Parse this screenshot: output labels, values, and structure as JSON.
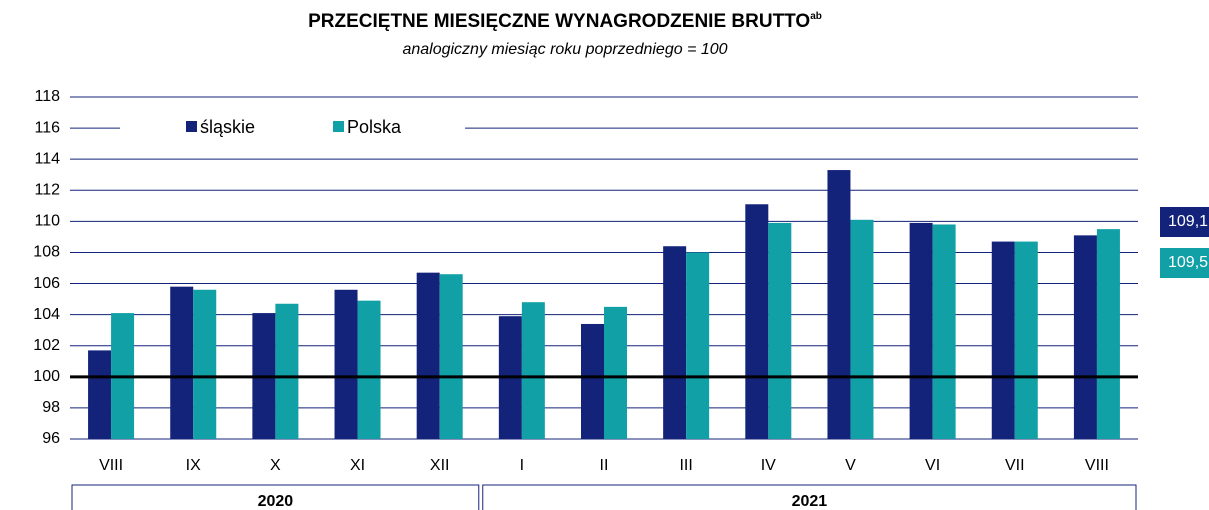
{
  "chart_data": {
    "type": "bar",
    "title": "PRZECIĘTNE MIESIĘCZNE WYNAGRODZENIE BRUTTO",
    "title_superscript": "ab",
    "subtitle": "analogiczny miesiąc roku poprzedniego = 100",
    "categories": [
      "VIII",
      "IX",
      "X",
      "XI",
      "XII",
      "I",
      "II",
      "III",
      "IV",
      "V",
      "VI",
      "VII",
      "VIII"
    ],
    "groups": [
      {
        "label": "2020",
        "count": 5
      },
      {
        "label": "2021",
        "count": 8
      }
    ],
    "series": [
      {
        "name": "śląskie",
        "color": "#13237a",
        "values": [
          101.7,
          105.8,
          104.1,
          105.6,
          106.7,
          103.9,
          103.4,
          108.4,
          111.1,
          113.3,
          109.9,
          108.7,
          109.1
        ],
        "end_label": "109,1"
      },
      {
        "name": "Polska",
        "color": "#11a0a6",
        "values": [
          104.1,
          105.6,
          104.7,
          104.9,
          106.6,
          104.8,
          104.5,
          108.0,
          109.9,
          110.1,
          109.8,
          108.7,
          109.5
        ],
        "end_label": "109,5"
      }
    ],
    "ylim": [
      96,
      118
    ],
    "yticks": [
      96,
      98,
      100,
      102,
      104,
      106,
      108,
      110,
      112,
      114,
      116,
      118
    ],
    "reference_line": 100,
    "grid": true
  }
}
